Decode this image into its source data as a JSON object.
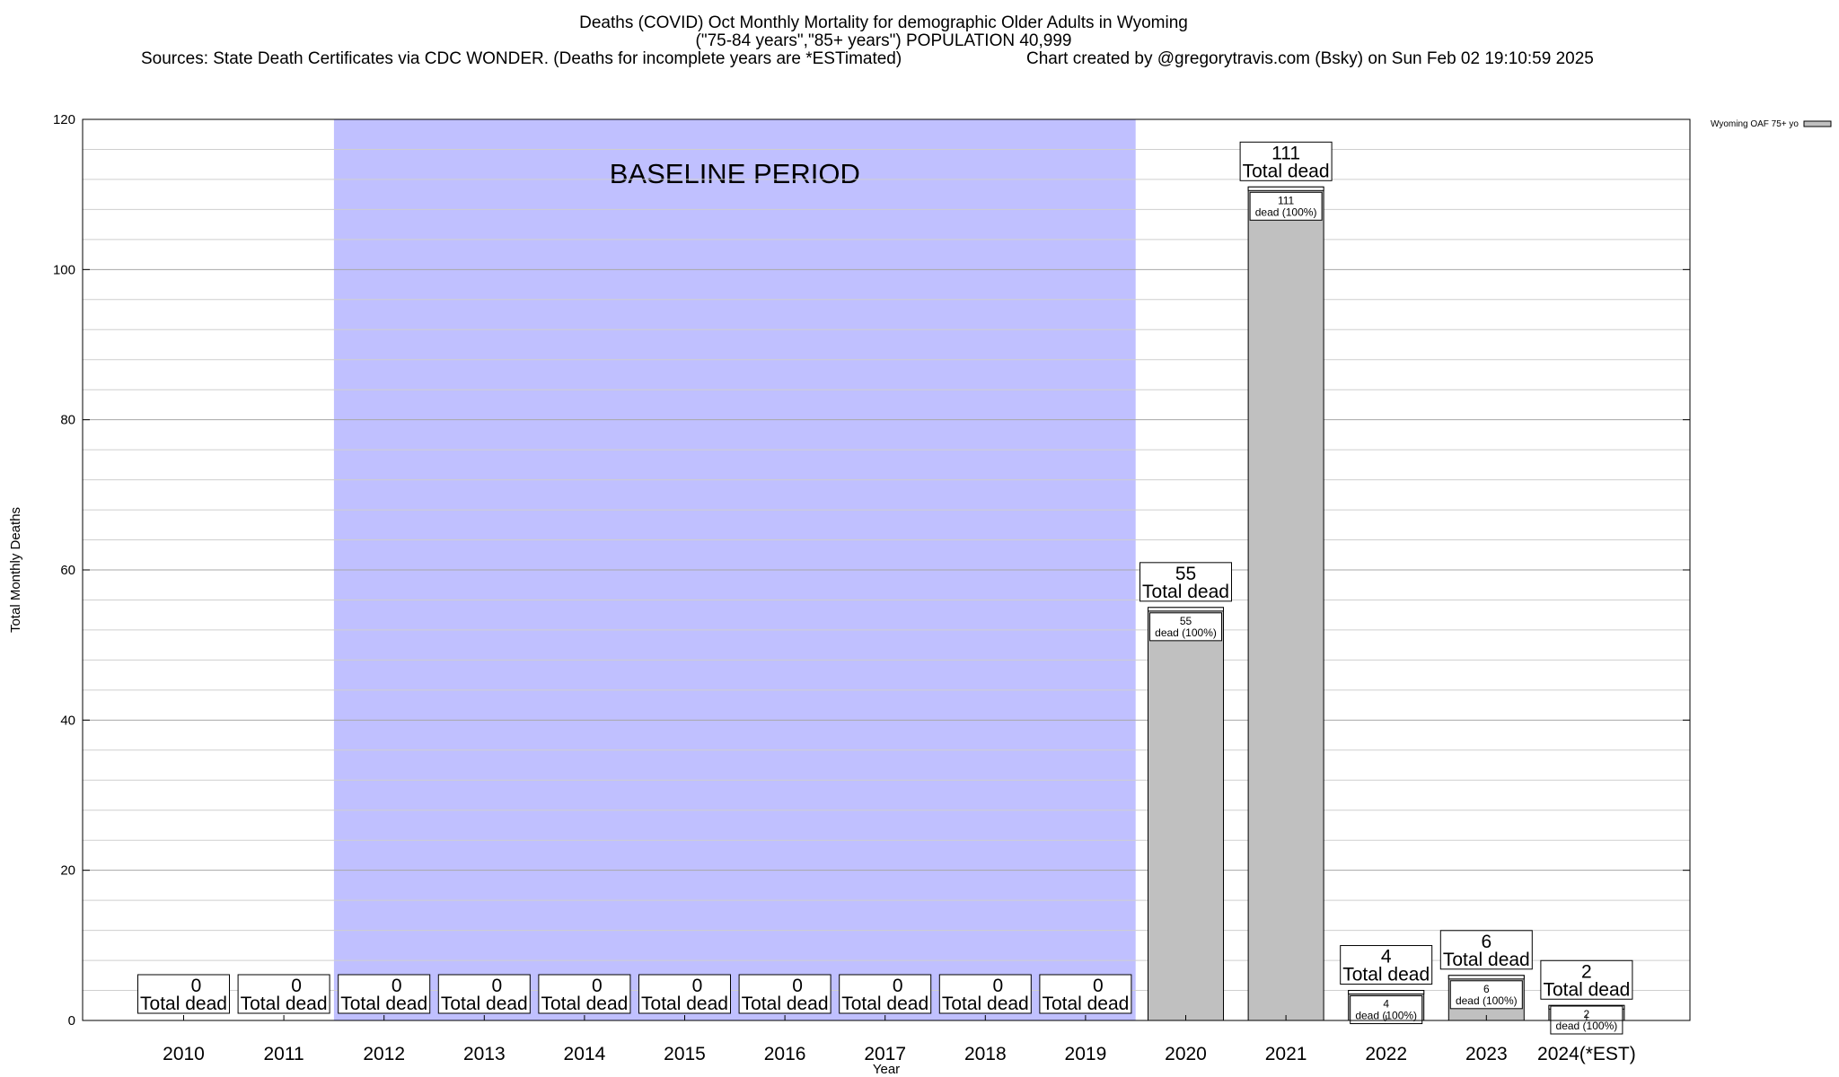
{
  "chart_data": {
    "type": "bar",
    "title_lines": [
      "Deaths (COVID) Oct Monthly Mortality for demographic Older Adults in Wyoming",
      "(\"75-84 years\",\"85+ years\") POPULATION 40,999"
    ],
    "sources": "Sources: State Death Certificates via CDC WONDER. (Deaths for incomplete years are *ESTimated)",
    "credit": "Chart created by @gregorytravis.com (Bsky) on Sun Feb 02 19:10:59 2025",
    "xlabel": "Year",
    "ylabel": "Total Monthly Deaths",
    "ylim": [
      0,
      120
    ],
    "y_ticks": [
      0,
      20,
      40,
      60,
      80,
      100,
      120
    ],
    "y_minor_step": 4,
    "grid": true,
    "legend": {
      "label": "Wyoming OAF 75+ yo",
      "position": "top-right",
      "color": "#c0c0c0"
    },
    "baseline": {
      "label": "BASELINE PERIOD",
      "from": "2012",
      "to": "2019",
      "color": "#c0c0ff"
    },
    "bar_color": "#c0c0c0",
    "categories": [
      "2010",
      "2011",
      "2012",
      "2013",
      "2014",
      "2015",
      "2016",
      "2017",
      "2018",
      "2019",
      "2020",
      "2021",
      "2022",
      "2023",
      "2024(*EST)"
    ],
    "values": [
      0,
      0,
      0,
      0,
      0,
      0,
      0,
      0,
      0,
      0,
      55,
      111,
      4,
      6,
      2
    ],
    "total_label_suffix": "Total dead",
    "inner_label_suffix": "dead (100%)",
    "series": [
      {
        "name": "Wyoming OAF 75+ yo",
        "values": [
          0,
          0,
          0,
          0,
          0,
          0,
          0,
          0,
          0,
          0,
          55,
          111,
          4,
          6,
          2
        ]
      }
    ]
  }
}
